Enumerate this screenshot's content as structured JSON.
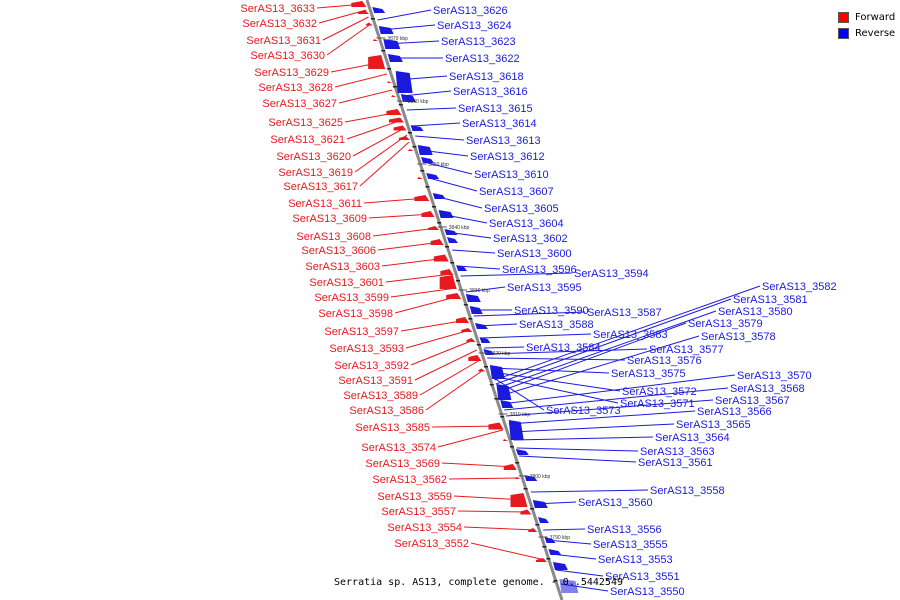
{
  "legend": {
    "forward_label": "Forward",
    "reverse_label": "Reverse",
    "forward_color": "#ff0000",
    "reverse_color": "#0000ff"
  },
  "colors": {
    "forward": "#e8191f",
    "reverse": "#1a1adf",
    "backbone": "#8a8a8a"
  },
  "caption": "Serratia sp. AS13, complete genome. - 0..5442549",
  "ticks": [
    "3870 kbp",
    "3860 kbp",
    "3850 kbp",
    "3840 kbp",
    "3830 kbp",
    "3820 kbp",
    "3810 kbp",
    "3800 kbp",
    "3790 kbp"
  ],
  "forward_labels": [
    "SerAS13_3633",
    "SerAS13_3632",
    "SerAS13_3631",
    "SerAS13_3630",
    "SerAS13_3629",
    "SerAS13_3628",
    "SerAS13_3627",
    "SerAS13_3625",
    "SerAS13_3621",
    "SerAS13_3620",
    "SerAS13_3619",
    "SerAS13_3617",
    "SerAS13_3611",
    "SerAS13_3609",
    "SerAS13_3608",
    "SerAS13_3606",
    "SerAS13_3603",
    "SerAS13_3601",
    "SerAS13_3599",
    "SerAS13_3598",
    "SerAS13_3597",
    "SerAS13_3593",
    "SerAS13_3592",
    "SerAS13_3591",
    "SerAS13_3589",
    "SerAS13_3586",
    "SerAS13_3585",
    "SerAS13_3574",
    "SerAS13_3569",
    "SerAS13_3562",
    "SerAS13_3559",
    "SerAS13_3557",
    "SerAS13_3554",
    "SerAS13_3552"
  ],
  "reverse_labels": [
    "SerAS13_3626",
    "SerAS13_3624",
    "SerAS13_3623",
    "SerAS13_3622",
    "SerAS13_3618",
    "SerAS13_3616",
    "SerAS13_3615",
    "SerAS13_3614",
    "SerAS13_3613",
    "SerAS13_3612",
    "SerAS13_3610",
    "SerAS13_3607",
    "SerAS13_3605",
    "SerAS13_3604",
    "SerAS13_3602",
    "SerAS13_3600",
    "SerAS13_3596",
    "SerAS13_3594",
    "SerAS13_3595",
    "SerAS13_3590",
    "SerAS13_3587",
    "SerAS13_3588",
    "SerAS13_3583",
    "SerAS13_3584",
    "SerAS13_3577",
    "SerAS13_3576",
    "SerAS13_3575",
    "SerAS13_3572",
    "SerAS13_3571",
    "SerAS13_3573",
    "SerAS13_3582",
    "SerAS13_3581",
    "SerAS13_3580",
    "SerAS13_3579",
    "SerAS13_3578",
    "SerAS13_3570",
    "SerAS13_3568",
    "SerAS13_3567",
    "SerAS13_3566",
    "SerAS13_3565",
    "SerAS13_3564",
    "SerAS13_3563",
    "SerAS13_3561",
    "SerAS13_3558",
    "SerAS13_3560",
    "SerAS13_3556",
    "SerAS13_3555",
    "SerAS13_3553",
    "SerAS13_3551",
    "SerAS13_3550"
  ]
}
